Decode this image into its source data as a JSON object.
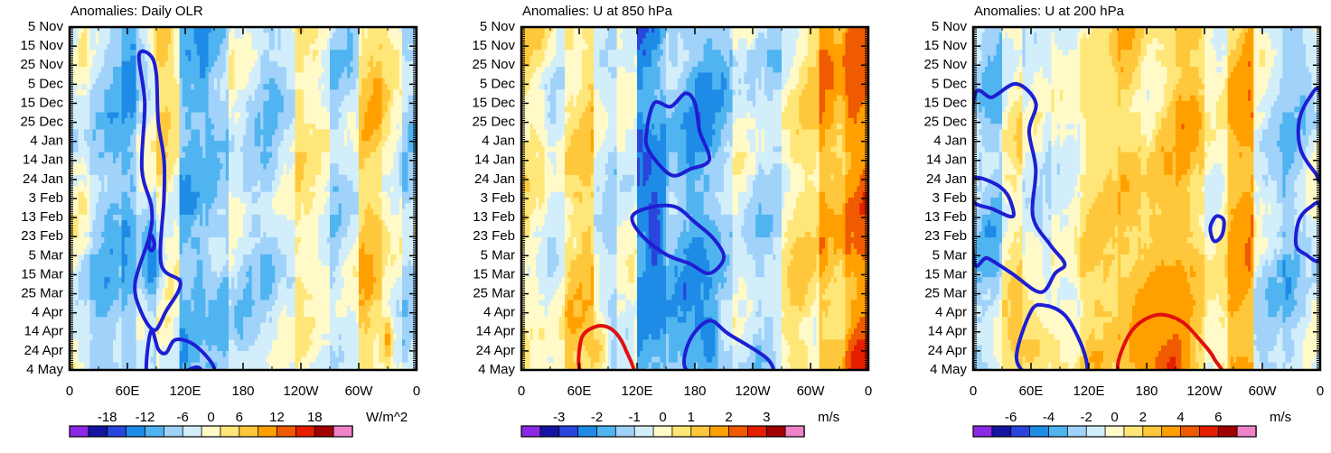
{
  "chart_data": [
    {
      "type": "heatmap",
      "title": "Anomalies: Daily OLR",
      "x_tick_labels": [
        "0",
        "60E",
        "120E",
        "180",
        "120W",
        "60W",
        "0"
      ],
      "x_range_deg": [
        0,
        360
      ],
      "y_tick_labels": [
        "5 Nov",
        "15 Nov",
        "25 Nov",
        "5 Dec",
        "15 Dec",
        "25 Dec",
        "4 Jan",
        "14 Jan",
        "24 Jan",
        "3 Feb",
        "13 Feb",
        "23 Feb",
        "5 Mar",
        "15 Mar",
        "25 Mar",
        "4 Apr",
        "14 Apr",
        "24 Apr",
        "4 May"
      ],
      "colorbar": {
        "labels": [
          "-18",
          "-12",
          "-6",
          "0",
          "6",
          "12",
          "18"
        ],
        "units": "W/m^2"
      },
      "bands": [
        {
          "lon": [
            0,
            20
          ],
          "value": -2
        },
        {
          "lon": [
            20,
            55
          ],
          "value": -4
        },
        {
          "lon": [
            55,
            70
          ],
          "value": -7
        },
        {
          "lon": [
            70,
            90
          ],
          "value": -3
        },
        {
          "lon": [
            90,
            115
          ],
          "value": 3
        },
        {
          "lon": [
            115,
            140
          ],
          "value": -5
        },
        {
          "lon": [
            140,
            165
          ],
          "value": -7
        },
        {
          "lon": [
            165,
            200
          ],
          "value": -2
        },
        {
          "lon": [
            200,
            235
          ],
          "value": -3
        },
        {
          "lon": [
            235,
            270
          ],
          "value": 2
        },
        {
          "lon": [
            270,
            300
          ],
          "value": -2
        },
        {
          "lon": [
            300,
            325
          ],
          "value": 5
        },
        {
          "lon": [
            325,
            345
          ],
          "value": 2
        },
        {
          "lon": [
            345,
            360
          ],
          "value": -2
        }
      ],
      "blobs": [
        {
          "lon": 95,
          "day": 8,
          "rlon": 10,
          "rday": 18,
          "value": 9
        },
        {
          "lon": 138,
          "day": 18,
          "rlon": 6,
          "rday": 24,
          "value": -10
        },
        {
          "lon": 85,
          "day": 125,
          "rlon": 12,
          "rday": 22,
          "value": -11
        },
        {
          "lon": 330,
          "day": 165,
          "rlon": 6,
          "rday": 15,
          "value": 10
        },
        {
          "lon": 135,
          "day": 140,
          "rlon": 7,
          "rday": 30,
          "value": -8
        },
        {
          "lon": 250,
          "day": 115,
          "rlon": 10,
          "rday": 40,
          "value": 3
        }
      ],
      "contours": [
        {
          "color": "#1e1ed2",
          "points": [
            [
              72,
              15
            ],
            [
              78,
              40
            ],
            [
              75,
              75
            ],
            [
              85,
              95
            ],
            [
              83,
              110
            ],
            [
              68,
              135
            ],
            [
              74,
              150
            ],
            [
              88,
              160
            ],
            [
              100,
              150
            ],
            [
              115,
              135
            ],
            [
              95,
              125
            ],
            [
              98,
              90
            ],
            [
              98,
              70
            ],
            [
              92,
              50
            ],
            [
              90,
              25
            ],
            [
              84,
              15
            ]
          ]
        },
        {
          "color": "#1e1ed2",
          "points": [
            [
              85,
              110
            ],
            [
              88,
              115
            ],
            [
              85,
              118
            ],
            [
              82,
              115
            ]
          ]
        },
        {
          "color": "#1e1ed2",
          "points": [
            [
              85,
              160
            ],
            [
              80,
              175
            ],
            [
              82,
              185
            ],
            [
              100,
              190
            ],
            [
              120,
              182
            ],
            [
              135,
              180
            ],
            [
              142,
              190
            ],
            [
              150,
              180
            ],
            [
              130,
              168
            ],
            [
              110,
              165
            ],
            [
              100,
              172
            ],
            [
              92,
              170
            ]
          ]
        }
      ]
    },
    {
      "type": "heatmap",
      "title": "Anomalies: U at 850 hPa",
      "x_tick_labels": [
        "0",
        "60E",
        "120E",
        "180",
        "120W",
        "60W",
        "0"
      ],
      "x_range_deg": [
        0,
        360
      ],
      "y_tick_labels": [
        "5 Nov",
        "15 Nov",
        "25 Nov",
        "5 Dec",
        "15 Dec",
        "25 Dec",
        "4 Jan",
        "14 Jan",
        "24 Jan",
        "3 Feb",
        "13 Feb",
        "23 Feb",
        "5 Mar",
        "15 Mar",
        "25 Mar",
        "4 Apr",
        "14 Apr",
        "24 Apr",
        "4 May"
      ],
      "colorbar": {
        "labels": [
          "-3",
          "-2",
          "-1",
          "0",
          "1",
          "2",
          "3"
        ],
        "units": "m/s"
      },
      "bands": [
        {
          "lon": [
            0,
            25
          ],
          "value": 0.4
        },
        {
          "lon": [
            25,
            45
          ],
          "value": 0.2
        },
        {
          "lon": [
            45,
            75
          ],
          "value": 0.8
        },
        {
          "lon": [
            75,
            100
          ],
          "value": -0.4
        },
        {
          "lon": [
            100,
            120
          ],
          "value": 0.3
        },
        {
          "lon": [
            120,
            150
          ],
          "value": -1.6
        },
        {
          "lon": [
            150,
            185
          ],
          "value": -1.1
        },
        {
          "lon": [
            185,
            220
          ],
          "value": -1.0
        },
        {
          "lon": [
            220,
            250
          ],
          "value": -0.4
        },
        {
          "lon": [
            250,
            270
          ],
          "value": -0.2
        },
        {
          "lon": [
            270,
            310
          ],
          "value": 0.5
        },
        {
          "lon": [
            310,
            335
          ],
          "value": 1.5
        },
        {
          "lon": [
            335,
            360
          ],
          "value": 2.0
        }
      ],
      "blobs": [
        {
          "lon": 138,
          "day": 110,
          "rlon": 10,
          "rday": 30,
          "value": -2.4
        },
        {
          "lon": 345,
          "day": 20,
          "rlon": 10,
          "rday": 45,
          "value": 2.4
        },
        {
          "lon": 78,
          "day": 170,
          "rlon": 15,
          "rday": 18,
          "value": 1.2
        },
        {
          "lon": 195,
          "day": 165,
          "rlon": 10,
          "rday": 18,
          "value": -2.0
        }
      ],
      "contours": [
        {
          "color": "#1e1ed2",
          "points": [
            [
              138,
              40
            ],
            [
              130,
              55
            ],
            [
              132,
              65
            ],
            [
              155,
              78
            ],
            [
              175,
              75
            ],
            [
              195,
              70
            ],
            [
              185,
              55
            ],
            [
              180,
              40
            ],
            [
              170,
              35
            ],
            [
              155,
              42
            ]
          ]
        },
        {
          "color": "#1e1ed2",
          "points": [
            [
              115,
              100
            ],
            [
              125,
              110
            ],
            [
              150,
              120
            ],
            [
              175,
              125
            ],
            [
              195,
              130
            ],
            [
              210,
              122
            ],
            [
              200,
              112
            ],
            [
              180,
              103
            ],
            [
              160,
              95
            ],
            [
              135,
              95
            ]
          ]
        },
        {
          "color": "#1e1ed2",
          "points": [
            [
              170,
              180
            ],
            [
              175,
              165
            ],
            [
              195,
              155
            ],
            [
              215,
              162
            ],
            [
              255,
              175
            ],
            [
              262,
              185
            ],
            [
              250,
              185
            ],
            [
              220,
              184
            ],
            [
              195,
              186
            ]
          ]
        },
        {
          "color": "#e10f0f",
          "points": [
            [
              65,
              185
            ],
            [
              62,
              165
            ],
            [
              78,
              158
            ],
            [
              95,
              160
            ],
            [
              108,
              170
            ],
            [
              115,
              186
            ]
          ]
        }
      ]
    },
    {
      "type": "heatmap",
      "title": "Anomalies: U at 200 hPa",
      "x_tick_labels": [
        "0",
        "60E",
        "120E",
        "180",
        "120W",
        "60W",
        "0"
      ],
      "x_range_deg": [
        0,
        360
      ],
      "y_tick_labels": [
        "5 Nov",
        "15 Nov",
        "25 Nov",
        "5 Dec",
        "15 Dec",
        "25 Dec",
        "4 Jan",
        "14 Jan",
        "24 Jan",
        "3 Feb",
        "13 Feb",
        "23 Feb",
        "5 Mar",
        "15 Mar",
        "25 Mar",
        "4 Apr",
        "14 Apr",
        "24 Apr",
        "4 May"
      ],
      "colorbar": {
        "labels": [
          "-6",
          "-4",
          "-2",
          "0",
          "2",
          "4",
          "6"
        ],
        "units": "m/s"
      },
      "bands": [
        {
          "lon": [
            0,
            30
          ],
          "value": -1.2
        },
        {
          "lon": [
            30,
            50
          ],
          "value": 1.0
        },
        {
          "lon": [
            50,
            80
          ],
          "value": -0.8
        },
        {
          "lon": [
            80,
            110
          ],
          "value": 0.5
        },
        {
          "lon": [
            110,
            150
          ],
          "value": 1.5
        },
        {
          "lon": [
            150,
            175
          ],
          "value": 2.5
        },
        {
          "lon": [
            175,
            210
          ],
          "value": 1.8
        },
        {
          "lon": [
            210,
            240
          ],
          "value": 2.2
        },
        {
          "lon": [
            240,
            265
          ],
          "value": 1.0
        },
        {
          "lon": [
            265,
            290
          ],
          "value": 2.8
        },
        {
          "lon": [
            290,
            320
          ],
          "value": -0.6
        },
        {
          "lon": [
            320,
            345
          ],
          "value": -1.5
        },
        {
          "lon": [
            345,
            360
          ],
          "value": -1.0
        }
      ],
      "blobs": [
        {
          "lon": 200,
          "day": 172,
          "rlon": 25,
          "rday": 20,
          "value": 5.5
        },
        {
          "lon": 205,
          "day": 178,
          "rlon": 8,
          "rday": 12,
          "value": 7.5
        },
        {
          "lon": 190,
          "day": 150,
          "rlon": 40,
          "rday": 40,
          "value": 3.5
        },
        {
          "lon": 60,
          "day": 170,
          "rlon": 40,
          "rday": 25,
          "value": 2.2
        },
        {
          "lon": 275,
          "day": 90,
          "rlon": 10,
          "rday": 50,
          "value": 3.0
        },
        {
          "lon": 330,
          "day": 30,
          "rlon": 15,
          "rday": 25,
          "value": -1.5
        },
        {
          "lon": 130,
          "day": 40,
          "rlon": 20,
          "rday": 50,
          "value": 1.2
        }
      ],
      "contours": [
        {
          "color": "#1e1ed2",
          "points": [
            [
              0,
              40
            ],
            [
              20,
              37
            ],
            [
              45,
              30
            ],
            [
              65,
              40
            ],
            [
              58,
              55
            ],
            [
              65,
              75
            ],
            [
              62,
              100
            ],
            [
              80,
              115
            ],
            [
              95,
              125
            ],
            [
              85,
              130
            ],
            [
              70,
              140
            ],
            [
              40,
              130
            ],
            [
              15,
              122
            ],
            [
              0,
              120
            ]
          ]
        },
        {
          "color": "#1e1ed2",
          "points": [
            [
              0,
              80
            ],
            [
              20,
              82
            ],
            [
              35,
              88
            ],
            [
              42,
              98
            ],
            [
              38,
              100
            ],
            [
              20,
              96
            ],
            [
              0,
              92
            ]
          ]
        },
        {
          "color": "#1e1ed2",
          "points": [
            [
              45,
              175
            ],
            [
              60,
              150
            ],
            [
              75,
              147
            ],
            [
              95,
              152
            ],
            [
              110,
              165
            ],
            [
              118,
              178
            ],
            [
              115,
              186
            ],
            [
              90,
              186
            ],
            [
              65,
              186
            ]
          ]
        },
        {
          "color": "#1e1ed2",
          "points": [
            [
              246,
              106
            ],
            [
              252,
              100
            ],
            [
              260,
              102
            ],
            [
              258,
              110
            ],
            [
              250,
              113
            ]
          ]
        },
        {
          "color": "#1e1ed2",
          "points": [
            [
              360,
              35
            ],
            [
              348,
              38
            ],
            [
              338,
              50
            ],
            [
              340,
              65
            ],
            [
              355,
              77
            ],
            [
              360,
              78
            ]
          ]
        },
        {
          "color": "#1e1ed2",
          "points": [
            [
              360,
              95
            ],
            [
              350,
              95
            ],
            [
              338,
              102
            ],
            [
              335,
              115
            ],
            [
              345,
              120
            ],
            [
              360,
              122
            ]
          ]
        },
        {
          "color": "#e10f0f",
          "points": [
            [
              150,
              178
            ],
            [
              165,
              160
            ],
            [
              190,
              152
            ],
            [
              215,
              155
            ],
            [
              235,
              165
            ],
            [
              250,
              175
            ],
            [
              255,
              186
            ],
            [
              175,
              186
            ],
            [
              158,
              185
            ]
          ]
        }
      ]
    }
  ]
}
